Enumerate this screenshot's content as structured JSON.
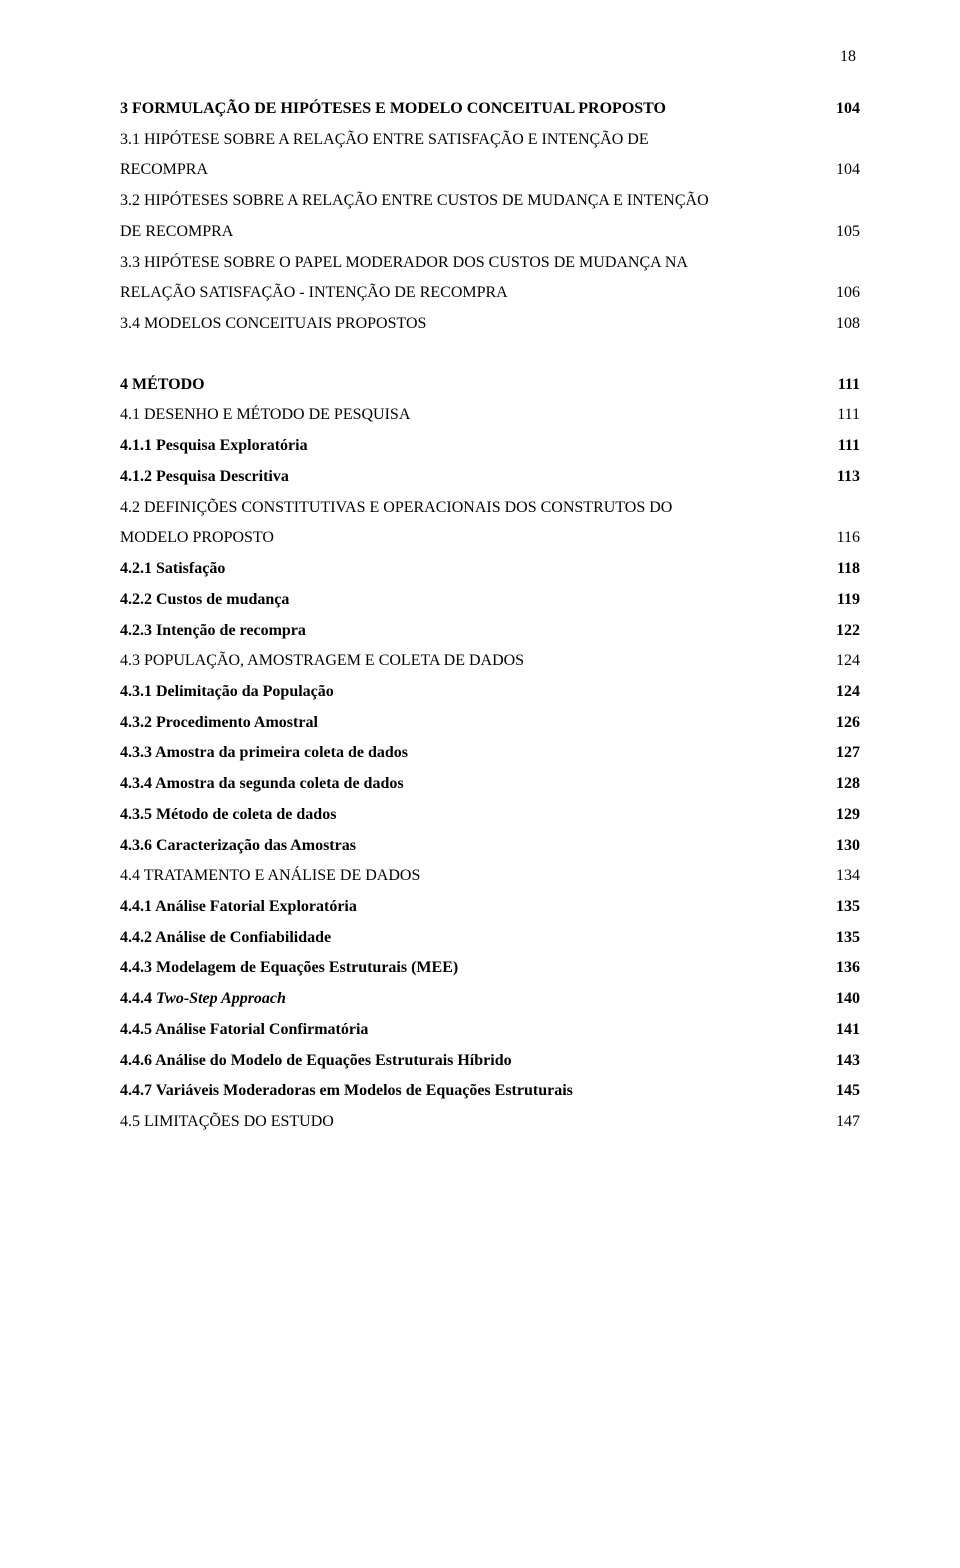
{
  "page_number": "18",
  "entries": [
    {
      "type": "row",
      "bold": true,
      "title": "3 FORMULAÇÃO DE HIPÓTESES E MODELO CONCEITUAL PROPOSTO",
      "page": "104"
    },
    {
      "type": "wrap",
      "line1": "3.1 HIPÓTESE SOBRE A RELAÇÃO ENTRE SATISFAÇÃO E INTENÇÃO DE",
      "line2": "RECOMPRA",
      "page": "104"
    },
    {
      "type": "wrap",
      "line1": "3.2 HIPÓTESES SOBRE A RELAÇÃO ENTRE CUSTOS DE MUDANÇA E INTENÇÃO",
      "line2": "DE RECOMPRA",
      "page": "105"
    },
    {
      "type": "wrap",
      "line1": "3.3 HIPÓTESE SOBRE O PAPEL MODERADOR DOS CUSTOS DE MUDANÇA NA",
      "line2": "RELAÇÃO SATISFAÇÃO - INTENÇÃO DE RECOMPRA",
      "page": "106"
    },
    {
      "type": "row",
      "title": "3.4 MODELOS CONCEITUAIS PROPOSTOS",
      "page": "108"
    },
    {
      "type": "gap"
    },
    {
      "type": "row",
      "bold": true,
      "title": "4 MÉTODO",
      "page": "111"
    },
    {
      "type": "row",
      "title": "4.1 DESENHO E MÉTODO DE PESQUISA",
      "page": "111"
    },
    {
      "type": "row",
      "bold": true,
      "title": "4.1.1 Pesquisa Exploratória",
      "page": "111"
    },
    {
      "type": "row",
      "bold": true,
      "title": "4.1.2 Pesquisa Descritiva",
      "page": "113"
    },
    {
      "type": "wrap",
      "line1": "4.2 DEFINIÇÕES CONSTITUTIVAS E OPERACIONAIS DOS CONSTRUTOS DO",
      "line2": "MODELO PROPOSTO",
      "page": "116"
    },
    {
      "type": "row",
      "bold": true,
      "title": "4.2.1 Satisfação",
      "page": "118"
    },
    {
      "type": "row",
      "bold": true,
      "title": "4.2.2 Custos de mudança",
      "page": "119"
    },
    {
      "type": "row",
      "bold": true,
      "title": "4.2.3 Intenção de recompra",
      "page": "122"
    },
    {
      "type": "row",
      "title": "4.3 POPULAÇÃO, AMOSTRAGEM E COLETA DE DADOS",
      "page": "124"
    },
    {
      "type": "row",
      "bold": true,
      "title": "4.3.1 Delimitação da População",
      "page": "124"
    },
    {
      "type": "row",
      "bold": true,
      "title": "4.3.2 Procedimento Amostral",
      "page": "126"
    },
    {
      "type": "row",
      "bold": true,
      "title": "4.3.3 Amostra da primeira coleta de dados",
      "page": "127"
    },
    {
      "type": "row",
      "bold": true,
      "title": "4.3.4 Amostra da segunda coleta de dados",
      "page": "128"
    },
    {
      "type": "row",
      "bold": true,
      "title": "4.3.5 Método de coleta de dados",
      "page": "129"
    },
    {
      "type": "row",
      "bold": true,
      "title": "4.3.6 Caracterização das Amostras",
      "page": "130"
    },
    {
      "type": "row",
      "title": "4.4 TRATAMENTO E ANÁLISE DE DADOS",
      "page": "134"
    },
    {
      "type": "row",
      "bold": true,
      "title": "4.4.1 Análise Fatorial Exploratória",
      "page": "135"
    },
    {
      "type": "row",
      "bold": true,
      "title": "4.4.2 Análise de Confiabilidade",
      "page": "135"
    },
    {
      "type": "row",
      "bold": true,
      "title": "4.4.3 Modelagem de Equações Estruturais (MEE)",
      "page": "136"
    },
    {
      "type": "row",
      "bold": true,
      "title_prefix": "4.4.4 ",
      "title_italic": "Two-Step Approach",
      "page": "140"
    },
    {
      "type": "row",
      "bold": true,
      "title": "4.4.5 Análise Fatorial Confirmatória",
      "page": "141"
    },
    {
      "type": "row",
      "bold": true,
      "title": "4.4.6 Análise do Modelo de Equações Estruturais Híbrido",
      "page": "143"
    },
    {
      "type": "row",
      "bold": true,
      "title": "4.4.7 Variáveis Moderadoras em Modelos de Equações Estruturais",
      "page": "145"
    },
    {
      "type": "row",
      "title": "4.5 LIMITAÇÕES DO ESTUDO",
      "page": "147"
    }
  ]
}
